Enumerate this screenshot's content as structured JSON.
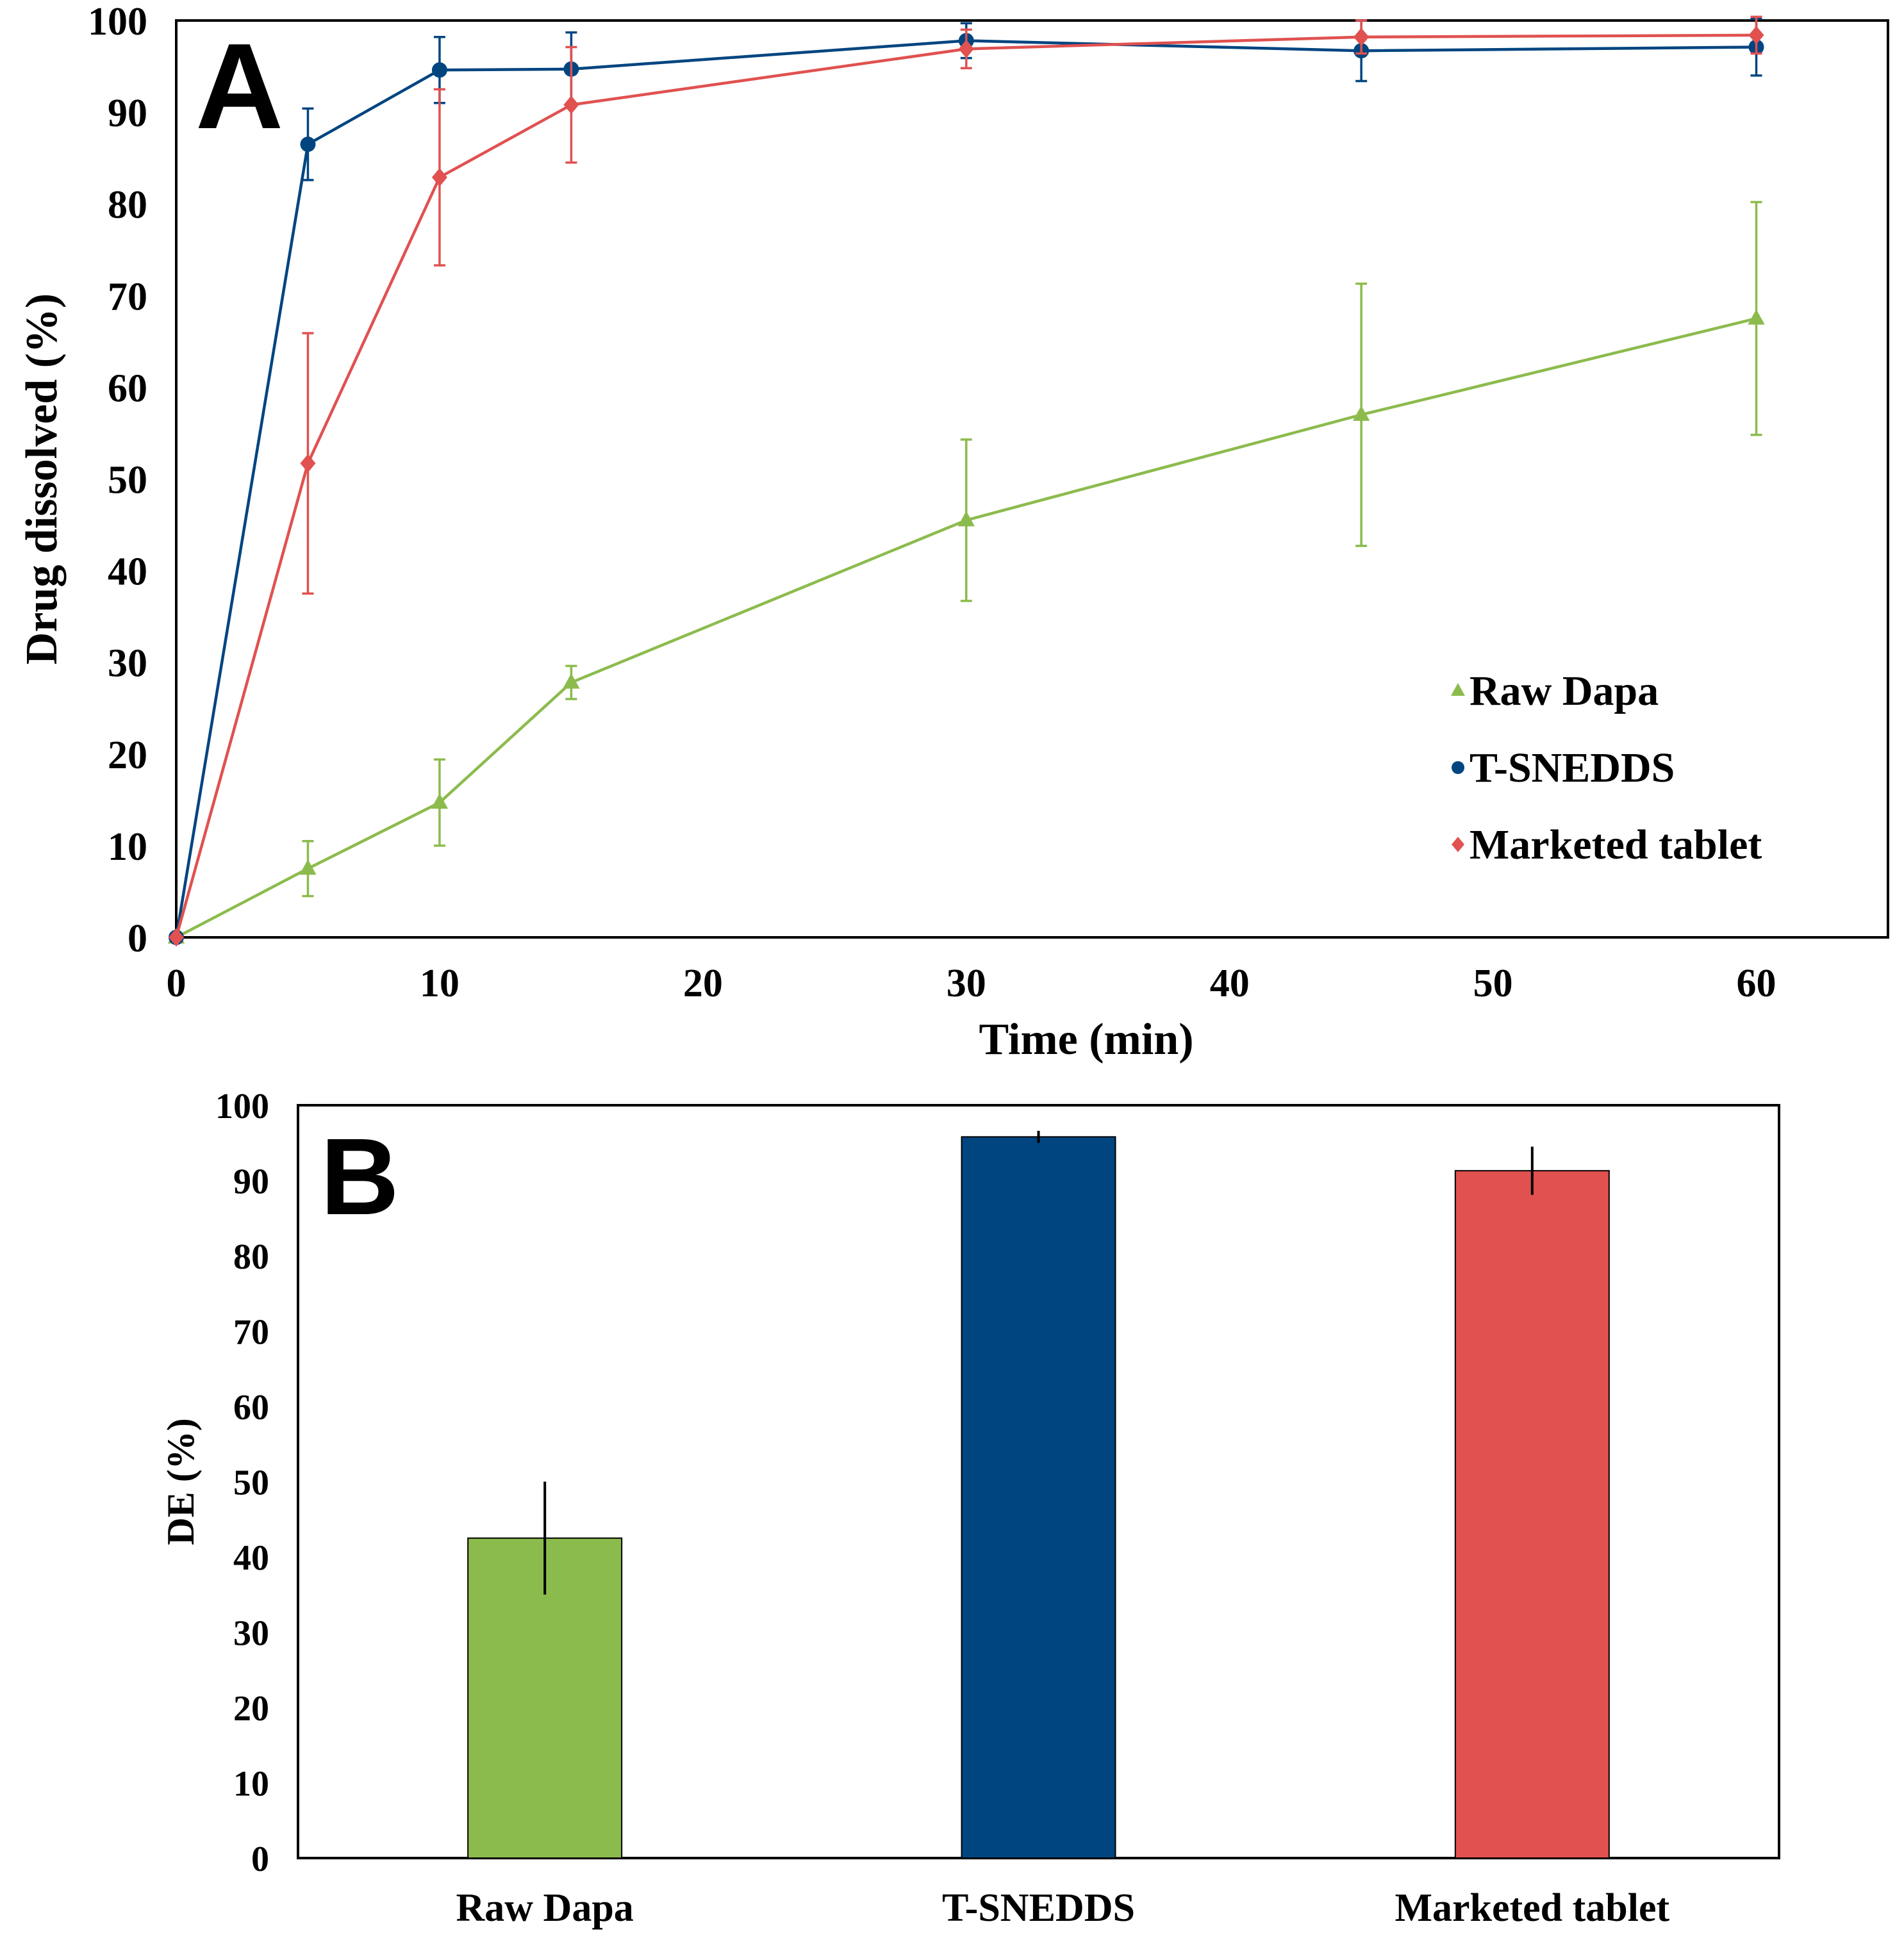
{
  "colors": {
    "raw_dapa": "#8cbb4d",
    "t_snedds": "#004580",
    "marketed_tablet": "#e05150",
    "axis": "#000000"
  },
  "chart_data": [
    {
      "panel": "A",
      "type": "line",
      "xlabel": "Time (min)",
      "ylabel": "Drug dissolved (%)",
      "xlim": [
        0,
        65
      ],
      "ylim": [
        0,
        100
      ],
      "xticks": [
        0,
        10,
        20,
        30,
        40,
        50,
        60
      ],
      "yticks": [
        0,
        10,
        20,
        30,
        40,
        50,
        60,
        70,
        80,
        90,
        100
      ],
      "legend_position": "lower-right",
      "series": [
        {
          "name": "Raw Dapa",
          "color_key": "raw_dapa",
          "marker": "triangle",
          "x": [
            0,
            5,
            10,
            15,
            30,
            45,
            60
          ],
          "y": [
            0,
            7.5,
            14.7,
            27.8,
            45.5,
            57.0,
            67.5
          ],
          "err": [
            0,
            3.0,
            4.7,
            1.8,
            8.8,
            14.3,
            12.7
          ]
        },
        {
          "name": "T-SNEDDS",
          "color_key": "t_snedds",
          "marker": "circle",
          "x": [
            0,
            5,
            10,
            15,
            30,
            45,
            60
          ],
          "y": [
            0,
            86.5,
            94.6,
            94.7,
            97.8,
            96.7,
            97.1
          ],
          "err": [
            0,
            3.9,
            3.6,
            4.0,
            1.9,
            3.3,
            3.1
          ]
        },
        {
          "name": "Marketed tablet",
          "color_key": "marketed_tablet",
          "marker": "diamond",
          "x": [
            0,
            5,
            10,
            15,
            30,
            45,
            60
          ],
          "y": [
            0,
            51.7,
            82.9,
            90.8,
            96.9,
            98.2,
            98.4
          ],
          "err": [
            0,
            14.2,
            9.6,
            6.3,
            2.1,
            1.8,
            2.0
          ]
        }
      ]
    },
    {
      "panel": "B",
      "type": "bar",
      "ylabel": "DE (%)",
      "xlabel": "",
      "ylim": [
        0,
        100
      ],
      "yticks": [
        0,
        10,
        20,
        30,
        40,
        50,
        60,
        70,
        80,
        90,
        100
      ],
      "categories": [
        "Raw Dapa",
        "T-SNEDDS",
        "Marketed tablet"
      ],
      "values": [
        42.5,
        95.8,
        91.3
      ],
      "err": [
        7.5,
        0.8,
        3.2
      ],
      "color_keys": [
        "raw_dapa",
        "t_snedds",
        "marketed_tablet"
      ]
    }
  ]
}
